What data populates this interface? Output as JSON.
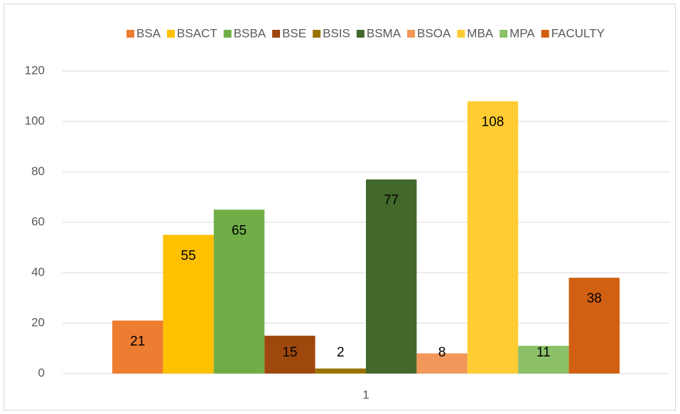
{
  "chart_data": {
    "type": "bar",
    "categories": [
      "1"
    ],
    "series": [
      {
        "name": "BSA",
        "color": "#ed7d31",
        "values": [
          21
        ]
      },
      {
        "name": "BSACT",
        "color": "#ffc000",
        "values": [
          55
        ]
      },
      {
        "name": "BSBA",
        "color": "#70ad47",
        "values": [
          65
        ]
      },
      {
        "name": "BSE",
        "color": "#9e480e",
        "values": [
          15
        ]
      },
      {
        "name": "BSIS",
        "color": "#997300",
        "values": [
          2
        ]
      },
      {
        "name": "BSMA",
        "color": "#43682b",
        "values": [
          77
        ]
      },
      {
        "name": "BSOA",
        "color": "#f1975a",
        "values": [
          8
        ]
      },
      {
        "name": "MBA",
        "color": "#ffcd33",
        "values": [
          108
        ]
      },
      {
        "name": "MPA",
        "color": "#8cc168",
        "values": [
          11
        ]
      },
      {
        "name": "FACULTY",
        "color": "#d26012",
        "values": [
          38
        ]
      }
    ],
    "ylim": [
      0,
      120
    ],
    "yticks": [
      0,
      20,
      40,
      60,
      80,
      100,
      120
    ],
    "grid": true,
    "legend": "top"
  }
}
